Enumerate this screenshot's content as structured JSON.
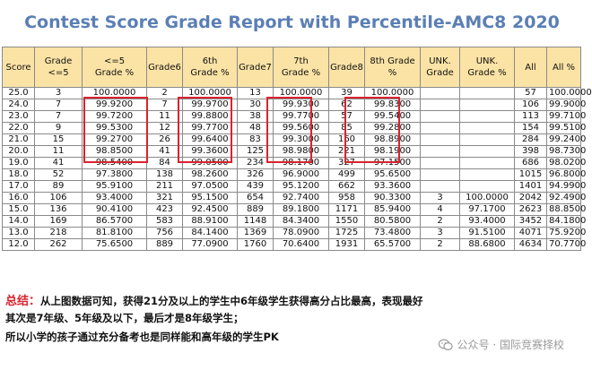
{
  "title": "Contest Score Grade Report with Percentile-AMC8 2020",
  "columns": [
    "Score",
    "Grade <=5",
    "<=5 Grade %",
    "Grade6",
    "6th Grade %",
    "Grade7",
    "7th Grade %",
    "Grade8",
    "8th Grade %",
    "UNK. Grade",
    "UNK. Grade %",
    "All",
    "All %"
  ],
  "rows": [
    [
      "25.0",
      "3",
      "100.0000",
      "2",
      "100.0000",
      "13",
      "100.0000",
      "39",
      "100.0000",
      "",
      "",
      "57",
      "100.0000"
    ],
    [
      "24.0",
      "7",
      "99.9200",
      "7",
      "99.9700",
      "30",
      "99.9300",
      "62",
      "99.8300",
      "",
      "",
      "106",
      "99.9000"
    ],
    [
      "23.0",
      "7",
      "99.7200",
      "11",
      "99.8800",
      "38",
      "99.7700",
      "57",
      "99.5400",
      "",
      "",
      "113",
      "99.7100"
    ],
    [
      "22.0",
      "9",
      "99.5300",
      "12",
      "99.7700",
      "48",
      "99.5600",
      "85",
      "99.2800",
      "",
      "",
      "154",
      "99.5100"
    ],
    [
      "21.0",
      "15",
      "99.2700",
      "26",
      "99.6400",
      "83",
      "99.3000",
      "160",
      "98.8900",
      "",
      "",
      "284",
      "99.2400"
    ],
    [
      "20.0",
      "11",
      "98.8500",
      "41",
      "99.3600",
      "125",
      "98.9800",
      "221",
      "98.1900",
      "",
      "",
      "398",
      "98.7300"
    ],
    [
      "19.0",
      "41",
      "98.5400",
      "84",
      "99.0500",
      "234",
      "98.1700",
      "327",
      "97.1500",
      "",
      "",
      "686",
      "98.0200"
    ],
    [
      "18.0",
      "52",
      "97.3800",
      "138",
      "98.2600",
      "326",
      "96.9000",
      "499",
      "95.6500",
      "",
      "",
      "1015",
      "96.8000"
    ],
    [
      "17.0",
      "89",
      "95.9100",
      "211",
      "97.0500",
      "439",
      "95.1200",
      "662",
      "93.3600",
      "",
      "",
      "1401",
      "94.9900"
    ],
    [
      "16.0",
      "106",
      "93.4000",
      "321",
      "95.1500",
      "654",
      "92.7400",
      "958",
      "90.3300",
      "3",
      "100.0000",
      "2042",
      "92.4900"
    ],
    [
      "15.0",
      "136",
      "90.4100",
      "423",
      "92.4500",
      "889",
      "89.1800",
      "1171",
      "85.9400",
      "4",
      "97.1700",
      "2623",
      "88.8500"
    ],
    [
      "14.0",
      "169",
      "86.5700",
      "583",
      "88.9100",
      "1148",
      "84.3400",
      "1550",
      "80.5800",
      "2",
      "93.4000",
      "3452",
      "84.1800"
    ],
    [
      "13.0",
      "218",
      "81.8100",
      "756",
      "84.1400",
      "1369",
      "78.0900",
      "1725",
      "73.4800",
      "3",
      "91.5100",
      "4071",
      "75.9200"
    ],
    [
      "12.0",
      "262",
      "75.6500",
      "889",
      "77.0900",
      "1760",
      "70.6400",
      "1931",
      "65.5700",
      "2",
      "88.6800",
      "4634",
      "70.7700"
    ]
  ],
  "summary": {
    "lead": "总结：",
    "line1": "从上图数据可知，获得21分及以上的学生中6年级学生获得高分占比最高，表现最好",
    "line2": "其次是7年级、5年级及以下，最后才是8年级学生；",
    "line3": "所以小学的孩子通过充分备考也是同样能和高年级的学生PK"
  },
  "watermark": {
    "icon": "wechat-icon",
    "text": "公众号 · 国际竞赛择校"
  },
  "colors": {
    "title": "#5b7fb5",
    "header_bg": "#fbe3a5",
    "highlight": "#d9232e",
    "lead": "#d9232e"
  }
}
